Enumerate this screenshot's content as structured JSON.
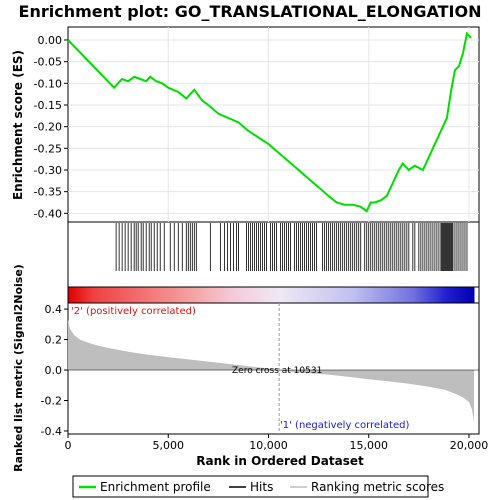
{
  "chart_data": {
    "type": "line",
    "title": "Enrichment plot: GO_TRANSLATIONAL_ELONGATION",
    "xlabel": "Rank in Ordered Dataset",
    "ylabel_top": "Enrichment score (ES)",
    "ylabel_bottom": "Ranked list metric (Signal2Noise)",
    "xlim": [
      0,
      20500
    ],
    "x_ticks": [
      0,
      5000,
      10000,
      15000,
      20000
    ],
    "x_tick_labels": [
      "0",
      "5,000",
      "10,000",
      "15,000",
      "20,000"
    ],
    "es_ylim": [
      -0.42,
      0.03
    ],
    "es_ticks": [
      0.0,
      -0.05,
      -0.1,
      -0.15,
      -0.2,
      -0.25,
      -0.3,
      -0.35,
      -0.4
    ],
    "es_tick_labels": [
      "0.00",
      "-0.05",
      "-0.10",
      "-0.15",
      "-0.20",
      "-0.25",
      "-0.30",
      "-0.35",
      "-0.40"
    ],
    "metric_ylim": [
      -0.42,
      0.44
    ],
    "metric_ticks": [
      0.4,
      0.2,
      0.0,
      -0.2,
      -0.4
    ],
    "metric_tick_labels": [
      "0.4",
      "0.2",
      "0.0",
      "-0.2",
      "-0.4"
    ],
    "enrichment_profile": {
      "x": [
        0,
        2300,
        2500,
        2700,
        3000,
        3300,
        3600,
        3900,
        4100,
        4400,
        4700,
        5000,
        5500,
        5900,
        6300,
        6700,
        7000,
        7500,
        8000,
        8500,
        9000,
        9500,
        10000,
        10500,
        11000,
        11500,
        12000,
        12500,
        13000,
        13400,
        13800,
        14200,
        14600,
        14900,
        15100,
        15300,
        15600,
        15900,
        16200,
        16500,
        16700,
        17000,
        17300,
        17700,
        18000,
        18300,
        18600,
        18900,
        19100,
        19300,
        19500,
        19700,
        19900,
        20100
      ],
      "y": [
        0.0,
        -0.11,
        -0.1,
        -0.09,
        -0.095,
        -0.085,
        -0.09,
        -0.095,
        -0.085,
        -0.095,
        -0.1,
        -0.11,
        -0.12,
        -0.135,
        -0.115,
        -0.14,
        -0.15,
        -0.17,
        -0.18,
        -0.19,
        -0.21,
        -0.225,
        -0.24,
        -0.26,
        -0.28,
        -0.3,
        -0.32,
        -0.34,
        -0.36,
        -0.375,
        -0.38,
        -0.38,
        -0.385,
        -0.395,
        -0.375,
        -0.375,
        -0.37,
        -0.36,
        -0.33,
        -0.3,
        -0.285,
        -0.3,
        -0.29,
        -0.3,
        -0.27,
        -0.24,
        -0.21,
        -0.18,
        -0.12,
        -0.07,
        -0.06,
        -0.03,
        0.015,
        0.005
      ]
    },
    "hits": [
      2400,
      2550,
      2700,
      2850,
      3000,
      3150,
      3300,
      3400,
      3500,
      3650,
      3750,
      3900,
      4050,
      4150,
      4300,
      4450,
      4600,
      4800,
      5100,
      5300,
      5500,
      5700,
      5900,
      6000,
      6100,
      6200,
      6300,
      6400,
      7100,
      7600,
      7800,
      7950,
      8100,
      8250,
      8400,
      8500,
      8900,
      9000,
      9100,
      9200,
      9300,
      9400,
      9500,
      9600,
      9700,
      9800,
      9900,
      10100,
      10200,
      10300,
      10400,
      10600,
      10700,
      10800,
      10900,
      11000,
      11100,
      11300,
      11400,
      11500,
      11600,
      11700,
      11800,
      11900,
      12000,
      12100,
      12200,
      12300,
      12400,
      12700,
      12800,
      12900,
      13000,
      13100,
      13200,
      13300,
      13400,
      13500,
      13600,
      13700,
      13800,
      13900,
      14000,
      14100,
      14200,
      14300,
      14400,
      14500,
      14600,
      14800,
      14900,
      15000,
      15100,
      15200,
      15300,
      15400,
      15500,
      15600,
      15700,
      15800,
      15900,
      16000,
      16100,
      16200,
      16300,
      16400,
      16500,
      16600,
      16700,
      16800,
      16900,
      17000,
      17200,
      17300,
      17500,
      17600,
      17700,
      17800,
      17900,
      18000,
      18100,
      18200,
      18300,
      18400,
      18500,
      18600,
      18650,
      18700,
      18750,
      18800,
      18850,
      18900,
      18950,
      19000,
      19050,
      19100,
      19150,
      19200,
      19300,
      19400,
      19500,
      19600,
      19700,
      19800,
      19900
    ],
    "ranked_metric": {
      "x": [
        0,
        100,
        300,
        600,
        1000,
        1500,
        2000,
        3000,
        4000,
        5000,
        6000,
        7000,
        8000,
        9000,
        10000,
        10531,
        11000,
        12000,
        13000,
        14000,
        15000,
        16000,
        17000,
        18000,
        18800,
        19300,
        19700,
        20000,
        20150,
        20250
      ],
      "y": [
        0.33,
        0.27,
        0.23,
        0.2,
        0.18,
        0.16,
        0.145,
        0.12,
        0.1,
        0.085,
        0.07,
        0.055,
        0.04,
        0.025,
        0.01,
        0.0,
        -0.01,
        -0.02,
        -0.03,
        -0.045,
        -0.06,
        -0.075,
        -0.09,
        -0.11,
        -0.13,
        -0.155,
        -0.18,
        -0.21,
        -0.26,
        -0.34
      ]
    },
    "zero_cross_x": 10531,
    "annotations": {
      "positive": "'2' (positively correlated)",
      "negative": "'1' (negatively correlated)",
      "zero_cross": "Zero cross at 10531"
    },
    "legend": {
      "placement": "bottom",
      "entries": [
        "Enrichment profile",
        "Hits",
        "Ranking metric scores"
      ]
    },
    "colors": {
      "profile": "#00dd00",
      "hits": "#000000",
      "metric_fill": "#bebebe",
      "positive_text": "#e01010",
      "negative_text": "#1a1ad0",
      "gradient_red": "#e00000",
      "gradient_blue": "#0000cc"
    }
  }
}
